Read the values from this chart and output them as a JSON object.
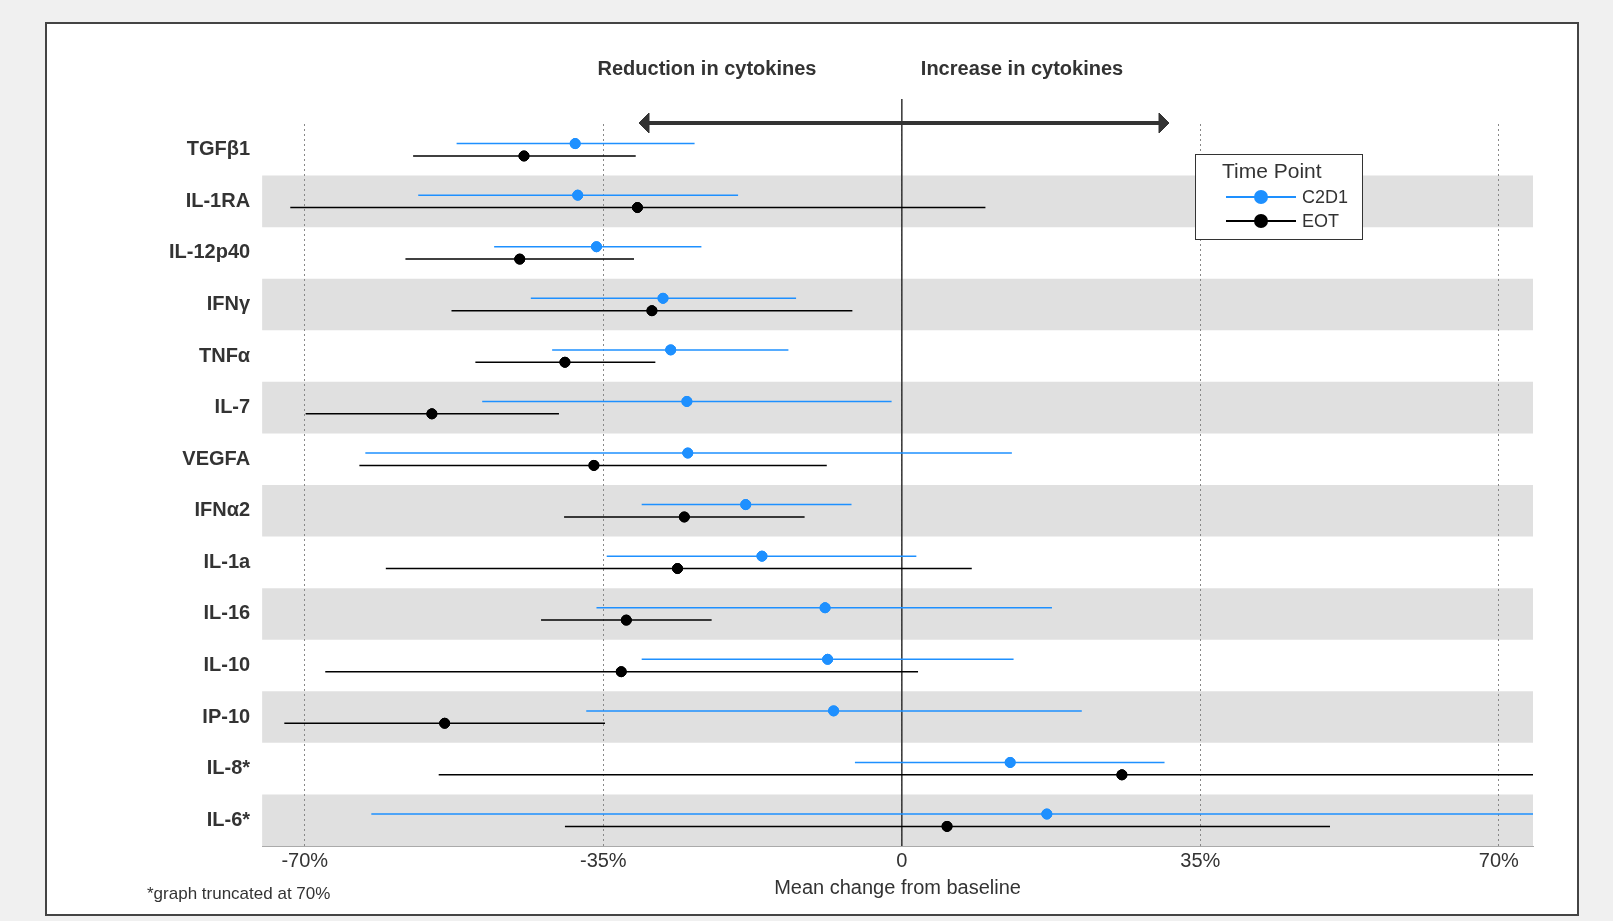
{
  "chart_data": {
    "type": "scatter",
    "orientation": "horizontal",
    "xlabel": "Mean change from baseline",
    "legend_title": "Time Point",
    "legend": "top right",
    "grid": "x",
    "marker": "circle",
    "categories": [
      "TGFβ1",
      "IL-1RA",
      "IL-12p40",
      "IFNγ",
      "TNFα",
      "IL-7",
      "VEGFA",
      "IFNα2",
      "IL-1a",
      "IL-16",
      "IL-10",
      "IP-10",
      "IL-8*",
      "IL-6*"
    ],
    "xlim": [
      -75,
      74
    ],
    "xticks": [
      {
        "value": -70,
        "label": "-70%"
      },
      {
        "value": -35,
        "label": "-35%"
      },
      0,
      {
        "value": 35,
        "label": "35%"
      },
      {
        "value": 70,
        "label": "70%"
      }
    ],
    "series": [
      {
        "name": "C2D1",
        "color": "#1e90ff",
        "values": [
          -38.3,
          -38,
          -35.8,
          -28,
          -27.1,
          -25.2,
          -25.1,
          -18.3,
          -16.4,
          -9,
          -8.7,
          -8,
          12.7,
          17
        ],
        "errors": [
          [
            -52.2,
            -24.3
          ],
          [
            -56.7,
            -19.2
          ],
          [
            -47.8,
            -23.5
          ],
          [
            -43.5,
            -12.4
          ],
          [
            -41,
            -13.3
          ],
          [
            -49.2,
            -1.2
          ],
          [
            -62.9,
            12.9
          ],
          [
            -30.5,
            -5.9
          ],
          [
            -34.6,
            1.7
          ],
          [
            -35.8,
            17.6
          ],
          [
            -30.5,
            13.1
          ],
          [
            -37,
            21.1
          ],
          [
            -5.5,
            30.8
          ],
          [
            -62.2,
            74
          ]
        ]
      },
      {
        "name": "EOT",
        "color": "#000000",
        "values": [
          -44.3,
          -31,
          -44.8,
          -29.3,
          -39.5,
          -55.1,
          -36.1,
          -25.5,
          -26.3,
          -32.3,
          -32.9,
          -53.6,
          25.8,
          5.3
        ],
        "errors": [
          [
            -57.3,
            -31.2
          ],
          [
            -71.7,
            9.8
          ],
          [
            -58.2,
            -31.4
          ],
          [
            -52.8,
            -5.8
          ],
          [
            -50,
            -28.9
          ],
          [
            -69.9,
            -40.2
          ],
          [
            -63.6,
            -8.8
          ],
          [
            -39.6,
            -11.4
          ],
          [
            -60.5,
            8.2
          ],
          [
            -42.3,
            -22.3
          ],
          [
            -67.6,
            1.9
          ],
          [
            -72.4,
            -34.8
          ],
          [
            -54.3,
            74
          ],
          [
            -39.5,
            50.2
          ]
        ]
      }
    ],
    "ref_lines": [
      {
        "axis": "x",
        "value": 0,
        "color": "#333333"
      }
    ],
    "annotations": [
      "Reduction in cytokines",
      "Increase in cytokines",
      "*graph truncated at 70%"
    ]
  }
}
